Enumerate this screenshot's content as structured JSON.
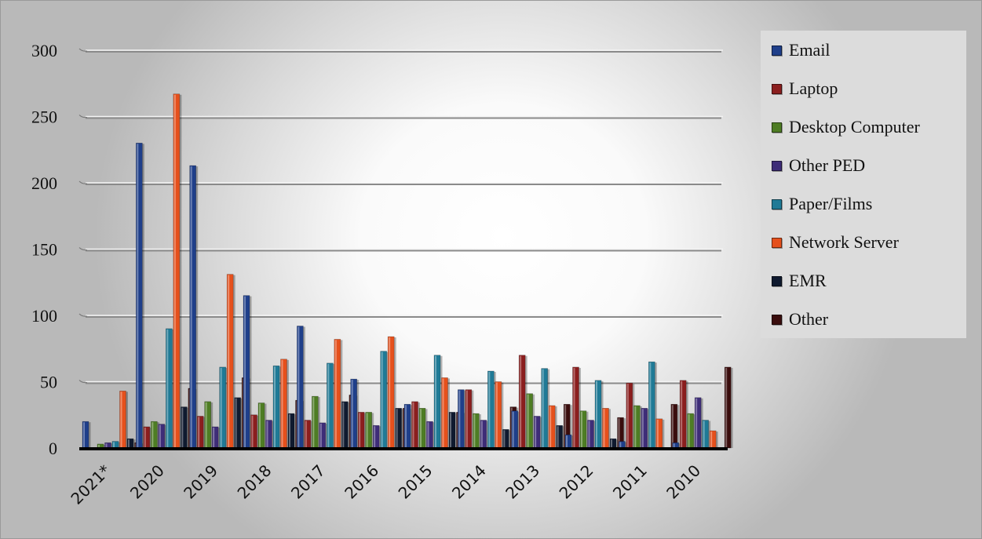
{
  "chart_data": {
    "type": "bar",
    "categories": [
      "2021*",
      "2020",
      "2019",
      "2018",
      "2017",
      "2016",
      "2015",
      "2014",
      "2013",
      "2012",
      "2011",
      "2010"
    ],
    "series": [
      {
        "name": "Email",
        "color": "#1f3f8a",
        "values": [
          20,
          230,
          213,
          115,
          92,
          52,
          33,
          44,
          28,
          10,
          5,
          4
        ]
      },
      {
        "name": "Laptop",
        "color": "#8b1e1e",
        "values": [
          0,
          16,
          24,
          25,
          21,
          27,
          35,
          44,
          70,
          61,
          49,
          51
        ]
      },
      {
        "name": "Desktop Computer",
        "color": "#4e7d24",
        "values": [
          3,
          20,
          35,
          34,
          39,
          27,
          30,
          26,
          41,
          28,
          32,
          26
        ]
      },
      {
        "name": "Other PED",
        "color": "#3e2d78",
        "values": [
          4,
          18,
          16,
          21,
          19,
          17,
          20,
          21,
          24,
          21,
          30,
          38
        ]
      },
      {
        "name": "Paper/Films",
        "color": "#1f7a96",
        "values": [
          5,
          90,
          61,
          62,
          64,
          73,
          70,
          58,
          60,
          51,
          65,
          21
        ]
      },
      {
        "name": "Network Server",
        "color": "#e5501c",
        "values": [
          43,
          267,
          131,
          67,
          82,
          84,
          53,
          50,
          32,
          30,
          22,
          13
        ]
      },
      {
        "name": "EMR",
        "color": "#0f1a2f",
        "values": [
          7,
          31,
          38,
          26,
          35,
          30,
          27,
          14,
          17,
          7,
          0,
          0
        ]
      },
      {
        "name": "Other",
        "color": "#3a0d0d",
        "values": [
          4,
          45,
          53,
          36,
          40,
          30,
          27,
          31,
          33,
          23,
          33,
          61
        ]
      }
    ],
    "xlabel": "",
    "ylabel": "",
    "ylim": [
      0,
      300
    ],
    "yticks": [
      0,
      50,
      100,
      150,
      200,
      250,
      300
    ],
    "grid": true,
    "legend_position": "right"
  }
}
